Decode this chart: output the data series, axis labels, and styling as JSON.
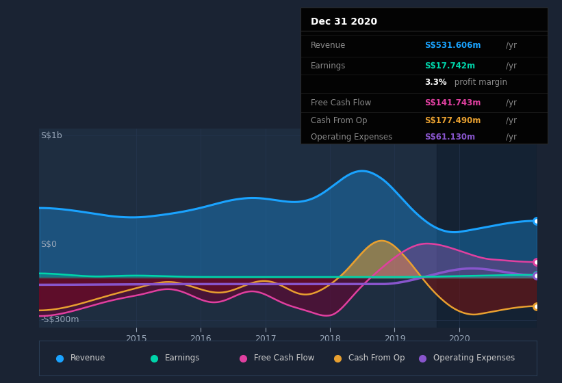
{
  "bg_color": "#1a2333",
  "plot_bg_color": "#1e2d40",
  "grid_color": "#253550",
  "ylabel_top": "S$1b",
  "ylabel_zero": "S$0",
  "ylabel_bot": "-S$300m",
  "x_tick_labels": [
    "2015",
    "2016",
    "2017",
    "2018",
    "2019",
    "2020"
  ],
  "x_ticks": [
    2015,
    2016,
    2017,
    2018,
    2019,
    2020
  ],
  "ylim": [
    -350,
    1050
  ],
  "xlim": [
    2013.5,
    2021.2
  ],
  "colors": {
    "revenue": "#1aa3ff",
    "earnings": "#00d4aa",
    "free_cash_flow": "#e040a0",
    "cash_from_op": "#e8a030",
    "operating_expenses": "#8855cc"
  },
  "info_box": {
    "title": "Dec 31 2020",
    "rows": [
      {
        "label": "Revenue",
        "value": "S$531.606m",
        "unit": "/yr",
        "color": "#1aa3ff",
        "sep_after": true
      },
      {
        "label": "Earnings",
        "value": "S$17.742m",
        "unit": "/yr",
        "color": "#00d4aa",
        "sep_after": false
      },
      {
        "label": "",
        "value": "3.3%",
        "unit": " profit margin",
        "color": "#ffffff",
        "sep_after": true
      },
      {
        "label": "Free Cash Flow",
        "value": "S$141.743m",
        "unit": "/yr",
        "color": "#e040a0",
        "sep_after": true
      },
      {
        "label": "Cash From Op",
        "value": "S$177.490m",
        "unit": "/yr",
        "color": "#e8a030",
        "sep_after": true
      },
      {
        "label": "Operating Expenses",
        "value": "S$61.130m",
        "unit": "/yr",
        "color": "#8855cc",
        "sep_after": false
      }
    ]
  },
  "legend": [
    {
      "label": "Revenue",
      "color": "#1aa3ff"
    },
    {
      "label": "Earnings",
      "color": "#00d4aa"
    },
    {
      "label": "Free Cash Flow",
      "color": "#e040a0"
    },
    {
      "label": "Cash From Op",
      "color": "#e8a030"
    },
    {
      "label": "Operating Expenses",
      "color": "#8855cc"
    }
  ]
}
